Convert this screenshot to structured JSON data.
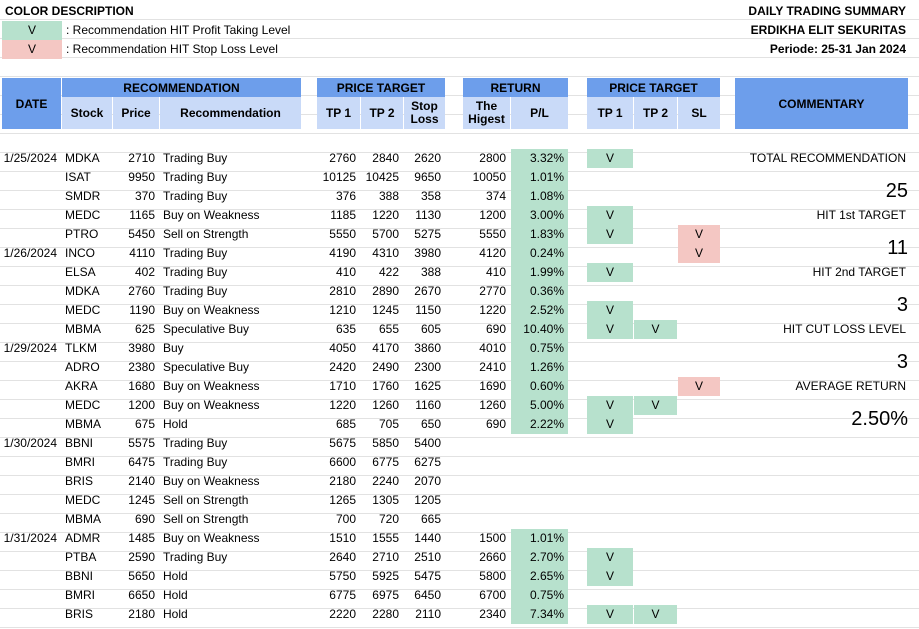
{
  "legend": {
    "title": "COLOR DESCRIPTION",
    "items": [
      {
        "mark": "V",
        "text": ": Recommendation HIT Profit Taking Level",
        "color": "#b7e1cd"
      },
      {
        "mark": "V",
        "text": ": Recommendation HIT Stop Loss Level",
        "color": "#f4c7c3"
      }
    ]
  },
  "report": {
    "title": "DAILY TRADING SUMMARY",
    "company": "ERDIKHA ELIT SEKURITAS",
    "period": "Periode:  25-31 Jan 2024"
  },
  "headers": {
    "date": "DATE",
    "recommendation_group": "RECOMMENDATION",
    "stock": "Stock",
    "price": "Price",
    "recommendation": "Recommendation",
    "price_target_group": "PRICE TARGET",
    "tp1": "TP 1",
    "tp2": "TP 2",
    "stop_loss": "Stop Loss",
    "return_group": "RETURN",
    "highest": "The Higest",
    "pl": "P/L",
    "price_target_group2": "PRICE TARGET",
    "hit_tp1": "TP 1",
    "hit_tp2": "TP 2",
    "hit_sl": "SL",
    "commentary": "COMMENTARY"
  },
  "rows": [
    {
      "date": "1/25/2024",
      "stock": "MDKA",
      "price": "2710",
      "rec": "Trading Buy",
      "tp1": "2760",
      "tp2": "2840",
      "sl": "2620",
      "high": "2800",
      "pl": "3.32%",
      "h1": "V",
      "h2": "",
      "hs": ""
    },
    {
      "date": "",
      "stock": "ISAT",
      "price": "9950",
      "rec": "Trading Buy",
      "tp1": "10125",
      "tp2": "10425",
      "sl": "9650",
      "high": "10050",
      "pl": "1.01%",
      "h1": "",
      "h2": "",
      "hs": ""
    },
    {
      "date": "",
      "stock": "SMDR",
      "price": "370",
      "rec": "Trading Buy",
      "tp1": "376",
      "tp2": "388",
      "sl": "358",
      "high": "374",
      "pl": "1.08%",
      "h1": "",
      "h2": "",
      "hs": ""
    },
    {
      "date": "",
      "stock": "MEDC",
      "price": "1165",
      "rec": "Buy on Weakness",
      "tp1": "1185",
      "tp2": "1220",
      "sl": "1130",
      "high": "1200",
      "pl": "3.00%",
      "h1": "V",
      "h2": "",
      "hs": ""
    },
    {
      "date": "",
      "stock": "PTRO",
      "price": "5450",
      "rec": "Sell on Strength",
      "tp1": "5550",
      "tp2": "5700",
      "sl": "5275",
      "high": "5550",
      "pl": "1.83%",
      "h1": "V",
      "h2": "",
      "hs": "V"
    },
    {
      "date": "1/26/2024",
      "stock": "INCO",
      "price": "4110",
      "rec": "Trading Buy",
      "tp1": "4190",
      "tp2": "4310",
      "sl": "3980",
      "high": "4120",
      "pl": "0.24%",
      "h1": "",
      "h2": "",
      "hs": "V"
    },
    {
      "date": "",
      "stock": "ELSA",
      "price": "402",
      "rec": "Trading Buy",
      "tp1": "410",
      "tp2": "422",
      "sl": "388",
      "high": "410",
      "pl": "1.99%",
      "h1": "V",
      "h2": "",
      "hs": ""
    },
    {
      "date": "",
      "stock": "MDKA",
      "price": "2760",
      "rec": "Trading Buy",
      "tp1": "2810",
      "tp2": "2890",
      "sl": "2670",
      "high": "2770",
      "pl": "0.36%",
      "h1": "",
      "h2": "",
      "hs": ""
    },
    {
      "date": "",
      "stock": "MEDC",
      "price": "1190",
      "rec": "Buy on Weakness",
      "tp1": "1210",
      "tp2": "1245",
      "sl": "1150",
      "high": "1220",
      "pl": "2.52%",
      "h1": "V",
      "h2": "",
      "hs": ""
    },
    {
      "date": "",
      "stock": "MBMA",
      "price": "625",
      "rec": "Speculative Buy",
      "tp1": "635",
      "tp2": "655",
      "sl": "605",
      "high": "690",
      "pl": "10.40%",
      "h1": "V",
      "h2": "V",
      "hs": ""
    },
    {
      "date": "1/29/2024",
      "stock": "TLKM",
      "price": "3980",
      "rec": "Buy",
      "tp1": "4050",
      "tp2": "4170",
      "sl": "3860",
      "high": "4010",
      "pl": "0.75%",
      "h1": "",
      "h2": "",
      "hs": ""
    },
    {
      "date": "",
      "stock": "ADRO",
      "price": "2380",
      "rec": "Speculative Buy",
      "tp1": "2420",
      "tp2": "2490",
      "sl": "2300",
      "high": "2410",
      "pl": "1.26%",
      "h1": "",
      "h2": "",
      "hs": ""
    },
    {
      "date": "",
      "stock": "AKRA",
      "price": "1680",
      "rec": "Buy on Weakness",
      "tp1": "1710",
      "tp2": "1760",
      "sl": "1625",
      "high": "1690",
      "pl": "0.60%",
      "h1": "",
      "h2": "",
      "hs": "V"
    },
    {
      "date": "",
      "stock": "MEDC",
      "price": "1200",
      "rec": "Buy on Weakness",
      "tp1": "1220",
      "tp2": "1260",
      "sl": "1160",
      "high": "1260",
      "pl": "5.00%",
      "h1": "V",
      "h2": "V",
      "hs": ""
    },
    {
      "date": "",
      "stock": "MBMA",
      "price": "675",
      "rec": "Hold",
      "tp1": "685",
      "tp2": "705",
      "sl": "650",
      "high": "690",
      "pl": "2.22%",
      "h1": "V",
      "h2": "",
      "hs": ""
    },
    {
      "date": "1/30/2024",
      "stock": "BBNI",
      "price": "5575",
      "rec": "Trading Buy",
      "tp1": "5675",
      "tp2": "5850",
      "sl": "5400",
      "high": "",
      "pl": "",
      "h1": "",
      "h2": "",
      "hs": ""
    },
    {
      "date": "",
      "stock": "BMRI",
      "price": "6475",
      "rec": "Trading Buy",
      "tp1": "6600",
      "tp2": "6775",
      "sl": "6275",
      "high": "",
      "pl": "",
      "h1": "",
      "h2": "",
      "hs": ""
    },
    {
      "date": "",
      "stock": "BRIS",
      "price": "2140",
      "rec": "Buy on Weakness",
      "tp1": "2180",
      "tp2": "2240",
      "sl": "2070",
      "high": "",
      "pl": "",
      "h1": "",
      "h2": "",
      "hs": ""
    },
    {
      "date": "",
      "stock": "MEDC",
      "price": "1245",
      "rec": "Sell on Strength",
      "tp1": "1265",
      "tp2": "1305",
      "sl": "1205",
      "high": "",
      "pl": "",
      "h1": "",
      "h2": "",
      "hs": ""
    },
    {
      "date": "",
      "stock": "MBMA",
      "price": "690",
      "rec": "Sell on Strength",
      "tp1": "700",
      "tp2": "720",
      "sl": "665",
      "high": "",
      "pl": "",
      "h1": "",
      "h2": "",
      "hs": ""
    },
    {
      "date": "1/31/2024",
      "stock": "ADMR",
      "price": "1485",
      "rec": "Buy on Weakness",
      "tp1": "1510",
      "tp2": "1555",
      "sl": "1440",
      "high": "1500",
      "pl": "1.01%",
      "h1": "",
      "h2": "",
      "hs": ""
    },
    {
      "date": "",
      "stock": "PTBA",
      "price": "2590",
      "rec": "Trading Buy",
      "tp1": "2640",
      "tp2": "2710",
      "sl": "2510",
      "high": "2660",
      "pl": "2.70%",
      "h1": "V",
      "h2": "",
      "hs": ""
    },
    {
      "date": "",
      "stock": "BBNI",
      "price": "5650",
      "rec": "Hold",
      "tp1": "5750",
      "tp2": "5925",
      "sl": "5475",
      "high": "5800",
      "pl": "2.65%",
      "h1": "V",
      "h2": "",
      "hs": ""
    },
    {
      "date": "",
      "stock": "BMRI",
      "price": "6650",
      "rec": "Hold",
      "tp1": "6775",
      "tp2": "6975",
      "sl": "6450",
      "high": "6700",
      "pl": "0.75%",
      "h1": "",
      "h2": "",
      "hs": ""
    },
    {
      "date": "",
      "stock": "BRIS",
      "price": "2180",
      "rec": "Hold",
      "tp1": "2220",
      "tp2": "2280",
      "sl": "2110",
      "high": "2340",
      "pl": "7.34%",
      "h1": "V",
      "h2": "V",
      "hs": ""
    }
  ],
  "commentary": [
    {
      "label": "TOTAL RECOMMENDATION",
      "value": "25"
    },
    {
      "label": "HIT 1st TARGET",
      "value": "11"
    },
    {
      "label": "HIT 2nd TARGET",
      "value": "3"
    },
    {
      "label": "HIT CUT LOSS LEVEL",
      "value": "3"
    },
    {
      "label": "AVERAGE RETURN",
      "value": "2.50%"
    }
  ]
}
